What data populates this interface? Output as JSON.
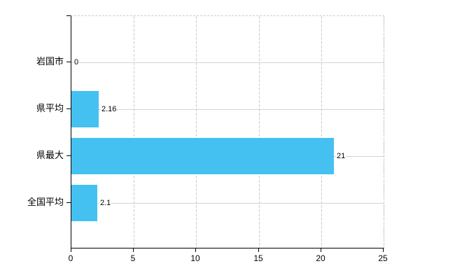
{
  "chart_data": {
    "type": "bar",
    "orientation": "horizontal",
    "title": "",
    "xlabel": "",
    "ylabel": "",
    "categories": [
      "岩国市",
      "県平均",
      "県最大",
      "全国平均"
    ],
    "values": [
      0,
      2.16,
      21,
      2.1
    ],
    "value_labels": [
      "0",
      "2.16",
      "21",
      "2.1"
    ],
    "xlim": [
      0,
      25
    ],
    "x_ticks": [
      "0",
      "5",
      "10",
      "15",
      "20",
      "25"
    ],
    "x_tick_values": [
      0,
      5,
      10,
      15,
      20,
      25
    ],
    "grid": true,
    "legend": "none",
    "bar_color": "#44C1F1",
    "h_gridline_color": "#d3d3d3",
    "v_gridline_color": "#cccccc",
    "axis_color": "#000000",
    "text_color": "#000000",
    "background_color": "#ffffff"
  }
}
